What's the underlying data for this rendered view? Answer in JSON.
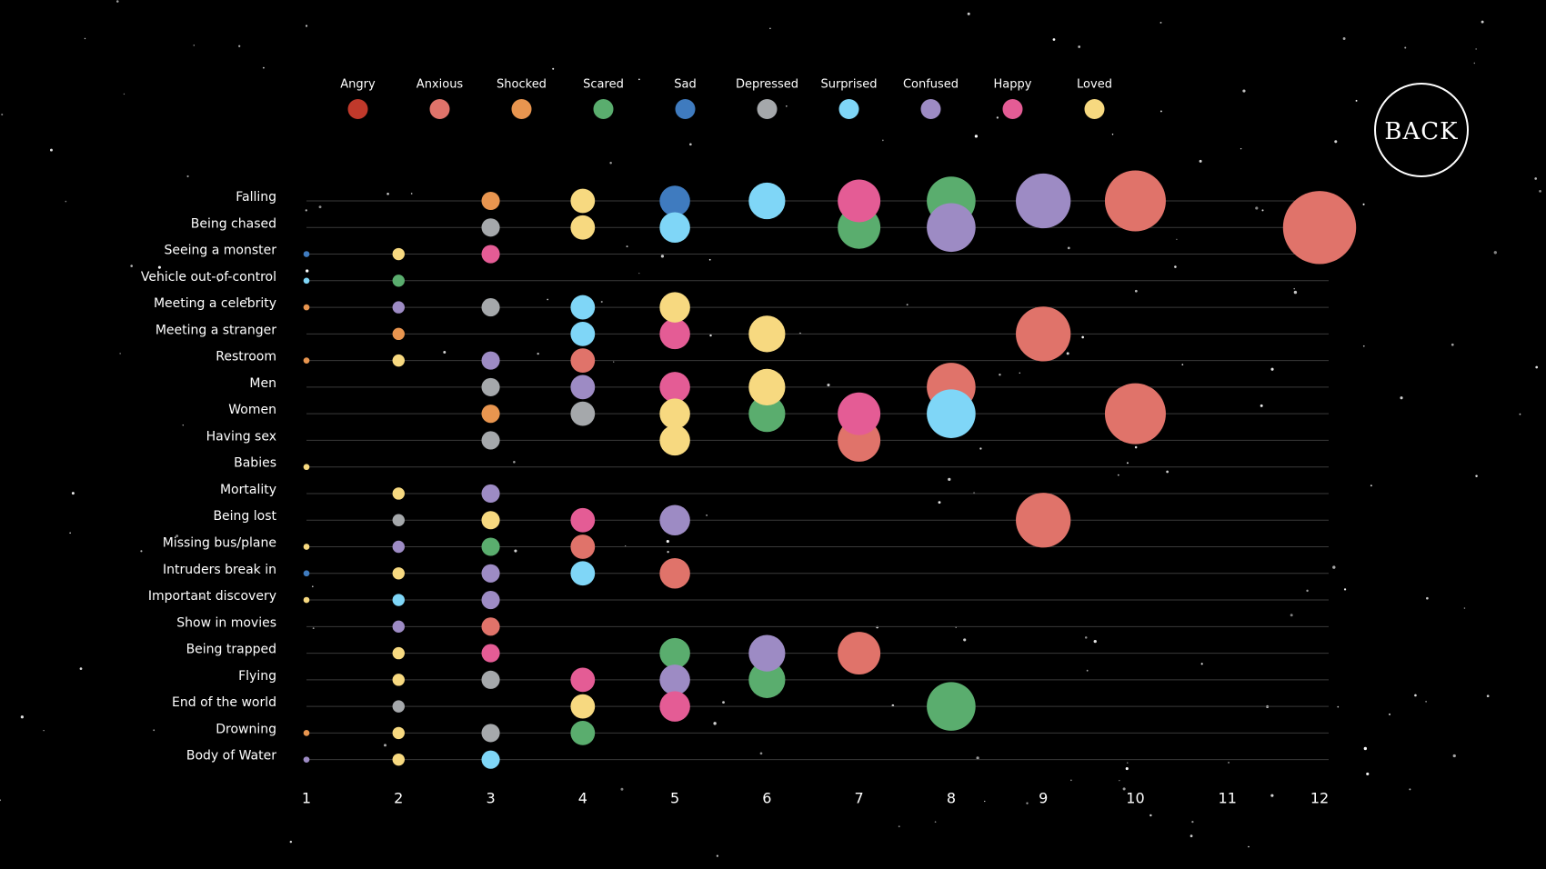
{
  "chart_data": {
    "type": "bubble",
    "categories": [
      "Falling",
      "Being chased",
      "Seeing a monster",
      "Vehicle out-of-control",
      "Meeting a celebrity",
      "Meeting a stranger",
      "Restroom",
      "Men",
      "Women",
      "Having sex",
      "Babies",
      "Mortality",
      "Being lost",
      "Missing bus/plane",
      "Intruders break in",
      "Important discovery",
      "Show in movies",
      "Being trapped",
      "Flying",
      "End of the world",
      "Drowning",
      "Body of Water"
    ],
    "xlim": [
      1,
      12
    ],
    "xticks": [
      1,
      2,
      3,
      4,
      5,
      6,
      7,
      8,
      9,
      10,
      11,
      12
    ],
    "grid": true,
    "series": [
      {
        "name": "Angry",
        "color": "#c0392b",
        "categories": [],
        "values": []
      },
      {
        "name": "Anxious",
        "color": "#e0736a",
        "categories": [
          "Falling",
          "Being chased",
          "Meeting a stranger",
          "Restroom",
          "Men",
          "Women",
          "Having sex",
          "Being lost",
          "Missing bus/plane",
          "Intruders break in",
          "Show in movies",
          "Being trapped"
        ],
        "values": [
          10,
          12,
          9,
          4,
          8,
          10,
          7,
          9,
          4,
          5,
          3,
          7
        ]
      },
      {
        "name": "Shocked",
        "color": "#e8954f",
        "categories": [
          "Falling",
          "Meeting a celebrity",
          "Meeting a stranger",
          "Restroom",
          "Women",
          "Drowning"
        ],
        "values": [
          3,
          1,
          2,
          1,
          3,
          1
        ]
      },
      {
        "name": "Scared",
        "color": "#5aad6e",
        "categories": [
          "Falling",
          "Being chased",
          "Vehicle out-of-control",
          "Women",
          "Missing bus/plane",
          "Being trapped",
          "Flying",
          "End of the world",
          "Drowning"
        ],
        "values": [
          8,
          7,
          2,
          6,
          3,
          5,
          6,
          8,
          4
        ]
      },
      {
        "name": "Sad",
        "color": "#3f7bbf",
        "categories": [
          "Falling",
          "Seeing a monster",
          "Intruders break in"
        ],
        "values": [
          5,
          1,
          1
        ]
      },
      {
        "name": "Depressed",
        "color": "#a5a8ab",
        "categories": [
          "Being chased",
          "Meeting a celebrity",
          "Men",
          "Women",
          "Having sex",
          "Being lost",
          "Flying",
          "End of the world",
          "Drowning"
        ],
        "values": [
          3,
          3,
          3,
          4,
          3,
          2,
          3,
          2,
          3
        ]
      },
      {
        "name": "Surprised",
        "color": "#7fd6f7",
        "categories": [
          "Falling",
          "Being chased",
          "Vehicle out-of-control",
          "Meeting a celebrity",
          "Meeting a stranger",
          "Women",
          "Intruders break in",
          "Important discovery",
          "Body of Water"
        ],
        "values": [
          6,
          5,
          1,
          4,
          4,
          8,
          4,
          2,
          3
        ]
      },
      {
        "name": "Confused",
        "color": "#9d8bc4",
        "categories": [
          "Falling",
          "Being chased",
          "Meeting a celebrity",
          "Restroom",
          "Men",
          "Mortality",
          "Being lost",
          "Missing bus/plane",
          "Intruders break in",
          "Important discovery",
          "Show in movies",
          "Being trapped",
          "Flying",
          "Body of Water"
        ],
        "values": [
          9,
          8,
          2,
          3,
          4,
          3,
          5,
          2,
          3,
          3,
          2,
          6,
          5,
          1
        ]
      },
      {
        "name": "Happy",
        "color": "#e45c95",
        "categories": [
          "Falling",
          "Seeing a monster",
          "Meeting a stranger",
          "Men",
          "Women",
          "Being lost",
          "Being trapped",
          "Flying",
          "End of the world"
        ],
        "values": [
          7,
          3,
          5,
          5,
          7,
          4,
          3,
          4,
          5
        ]
      },
      {
        "name": "Loved",
        "color": "#f7d980",
        "categories": [
          "Falling",
          "Being chased",
          "Seeing a monster",
          "Meeting a celebrity",
          "Meeting a stranger",
          "Restroom",
          "Men",
          "Women",
          "Having sex",
          "Babies",
          "Mortality",
          "Being lost",
          "Missing bus/plane",
          "Intruders break in",
          "Important discovery",
          "Being trapped",
          "Flying",
          "End of the world",
          "Drowning",
          "Body of Water"
        ],
        "values": [
          4,
          4,
          2,
          5,
          6,
          2,
          6,
          5,
          5,
          1,
          2,
          3,
          1,
          2,
          1,
          2,
          2,
          4,
          2,
          2
        ]
      }
    ]
  },
  "button": {
    "label": "BACK"
  }
}
